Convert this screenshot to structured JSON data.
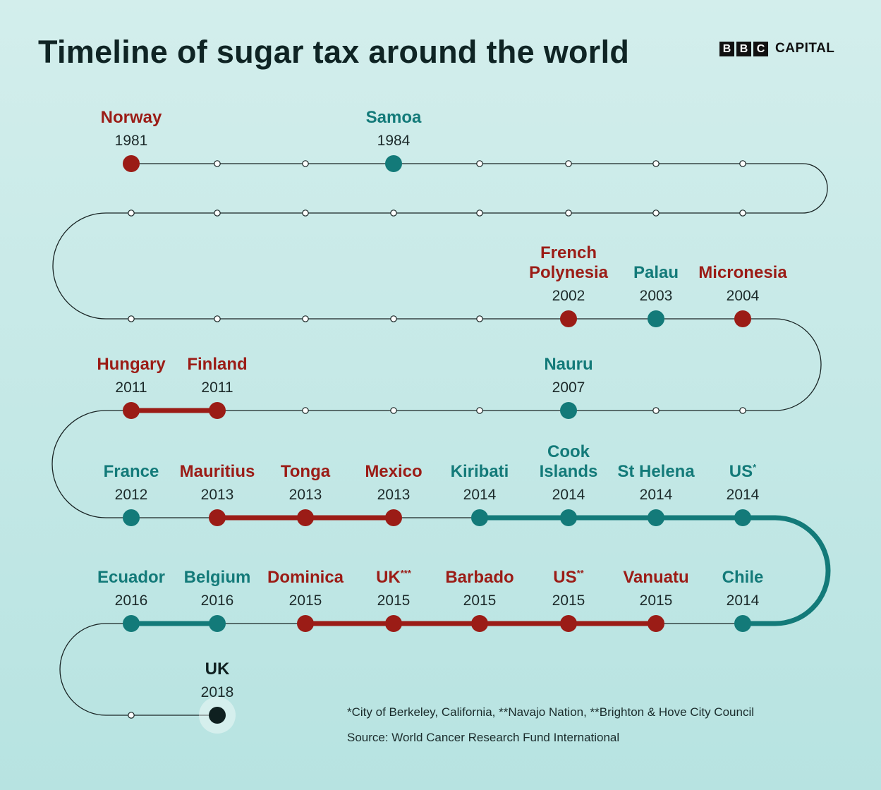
{
  "title": "Timeline of sugar tax around the world",
  "brand": {
    "boxes": [
      "B",
      "B",
      "C"
    ],
    "word": "CAPITAL"
  },
  "footnote": "*City of Berkeley, California, **Navajo Nation, **Brighton & Hove City Council",
  "source": "Source: World Cancer Research Fund International",
  "colors": {
    "red": "#9b1c16",
    "teal": "#137a79",
    "dark": "#0f2020",
    "line": "#1a2525"
  },
  "events": [
    {
      "country": [
        "Norway"
      ],
      "year": "1981",
      "color": "red"
    },
    {
      "country": [
        "Samoa"
      ],
      "year": "1984",
      "color": "teal"
    },
    {
      "country": [
        "French",
        "Polynesia"
      ],
      "year": "2002",
      "color": "red"
    },
    {
      "country": [
        "Palau"
      ],
      "year": "2003",
      "color": "teal"
    },
    {
      "country": [
        "Micronesia"
      ],
      "year": "2004",
      "color": "red"
    },
    {
      "country": [
        "Hungary"
      ],
      "year": "2011",
      "color": "red"
    },
    {
      "country": [
        "Finland"
      ],
      "year": "2011",
      "color": "red"
    },
    {
      "country": [
        "Nauru"
      ],
      "year": "2007",
      "color": "teal"
    },
    {
      "country": [
        "France"
      ],
      "year": "2012",
      "color": "teal"
    },
    {
      "country": [
        "Mauritius"
      ],
      "year": "2013",
      "color": "red"
    },
    {
      "country": [
        "Tonga"
      ],
      "year": "2013",
      "color": "red"
    },
    {
      "country": [
        "Mexico"
      ],
      "year": "2013",
      "color": "red"
    },
    {
      "country": [
        "Kiribati"
      ],
      "year": "2014",
      "color": "teal"
    },
    {
      "country": [
        "Cook",
        "Islands"
      ],
      "year": "2014",
      "color": "teal"
    },
    {
      "country": [
        "St Helena"
      ],
      "year": "2014",
      "color": "teal"
    },
    {
      "country": [
        "US"
      ],
      "sup": "*",
      "year": "2014",
      "color": "teal"
    },
    {
      "country": [
        "Ecuador"
      ],
      "year": "2016",
      "color": "teal"
    },
    {
      "country": [
        "Belgium"
      ],
      "year": "2016",
      "color": "teal"
    },
    {
      "country": [
        "Dominica"
      ],
      "year": "2015",
      "color": "red"
    },
    {
      "country": [
        "UK"
      ],
      "sup": "***",
      "year": "2015",
      "color": "red"
    },
    {
      "country": [
        "Barbado"
      ],
      "year": "2015",
      "color": "red"
    },
    {
      "country": [
        "US"
      ],
      "sup": "**",
      "year": "2015",
      "color": "red"
    },
    {
      "country": [
        "Vanuatu"
      ],
      "year": "2015",
      "color": "red"
    },
    {
      "country": [
        "Chile"
      ],
      "year": "2014",
      "color": "teal"
    },
    {
      "country": [
        "UK"
      ],
      "year": "2018",
      "color": "dark"
    }
  ]
}
